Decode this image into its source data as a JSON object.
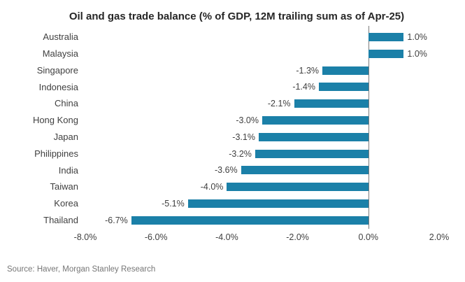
{
  "chart_data": {
    "type": "bar",
    "orientation": "horizontal",
    "title": "Oil and gas trade balance (% of GDP, 12M trailing sum as of Apr-25)",
    "categories": [
      "Australia",
      "Malaysia",
      "Singapore",
      "Indonesia",
      "China",
      "Hong Kong",
      "Japan",
      "Philippines",
      "India",
      "Taiwan",
      "Korea",
      "Thailand"
    ],
    "values": [
      1.0,
      1.0,
      -1.3,
      -1.4,
      -2.1,
      -3.0,
      -3.1,
      -3.2,
      -3.6,
      -4.0,
      -5.1,
      -6.7
    ],
    "value_labels": [
      "1.0%",
      "1.0%",
      "-1.3%",
      "-1.4%",
      "-2.1%",
      "-3.0%",
      "-3.1%",
      "-3.2%",
      "-3.6%",
      "-4.0%",
      "-5.1%",
      "-6.7%"
    ],
    "xlim": [
      -8,
      2
    ],
    "xticks": [
      {
        "label": "-8.0%",
        "value": -8
      },
      {
        "label": "-6.0%",
        "value": -6
      },
      {
        "label": "-4.0%",
        "value": -4
      },
      {
        "label": "-2.0%",
        "value": -2
      },
      {
        "label": "0.0%",
        "value": 0
      },
      {
        "label": "2.0%",
        "value": 2
      }
    ],
    "bar_color": "#1b80a8",
    "grid": false,
    "legend": false
  },
  "source": "Source: Haver, Morgan Stanley Research"
}
